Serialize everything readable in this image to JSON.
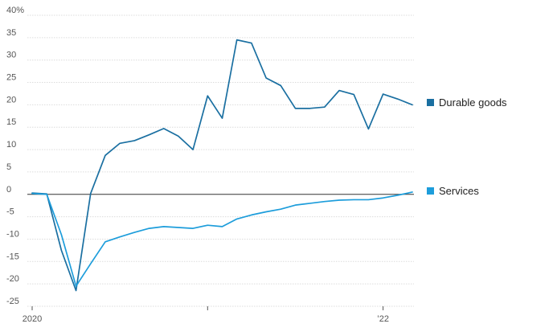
{
  "chart_data": {
    "type": "line",
    "title": "",
    "xlabel": "",
    "ylabel": "",
    "unit": "%",
    "ylim": [
      -25,
      40
    ],
    "xlim": [
      "2020-01",
      "2022-04"
    ],
    "yticks": [
      {
        "value": 40,
        "label": "40%"
      },
      {
        "value": 35,
        "label": "35"
      },
      {
        "value": 30,
        "label": "30"
      },
      {
        "value": 25,
        "label": "25"
      },
      {
        "value": 20,
        "label": "20"
      },
      {
        "value": 15,
        "label": "15"
      },
      {
        "value": 10,
        "label": "10"
      },
      {
        "value": 5,
        "label": "5"
      },
      {
        "value": 0,
        "label": "0"
      },
      {
        "value": -5,
        "label": "-5"
      },
      {
        "value": -10,
        "label": "-10"
      },
      {
        "value": -15,
        "label": "-15"
      },
      {
        "value": -20,
        "label": "-20"
      },
      {
        "value": -25,
        "label": "-25"
      }
    ],
    "xticks": [
      {
        "value": "2020-01",
        "label": "2020"
      },
      {
        "value": "2021-01",
        "label": ""
      },
      {
        "value": "2022-01",
        "label": "’22"
      }
    ],
    "grid": true,
    "legend": "right-inline",
    "x": [
      "2020-01",
      "2020-02",
      "2020-03",
      "2020-04",
      "2020-05",
      "2020-06",
      "2020-07",
      "2020-08",
      "2020-09",
      "2020-10",
      "2020-11",
      "2020-12",
      "2021-01",
      "2021-02",
      "2021-03",
      "2021-04",
      "2021-05",
      "2021-06",
      "2021-07",
      "2021-08",
      "2021-09",
      "2021-10",
      "2021-11",
      "2021-12",
      "2022-01",
      "2022-02",
      "2022-03"
    ],
    "series": [
      {
        "name": "Durable goods",
        "color": "#1a6fa1",
        "values": [
          0.3,
          0.1,
          -12.5,
          -21.5,
          0.2,
          8.7,
          11.4,
          12.0,
          13.3,
          14.7,
          13.0,
          10.0,
          22.0,
          17.0,
          34.5,
          33.8,
          26.0,
          24.3,
          19.2,
          19.2,
          19.5,
          23.2,
          22.3,
          14.6,
          22.4,
          21.3,
          20.0
        ]
      },
      {
        "name": "Services",
        "color": "#1d9ddb",
        "values": [
          0.2,
          0.0,
          -9.0,
          -20.5,
          -15.5,
          -10.6,
          -9.5,
          -8.5,
          -7.6,
          -7.2,
          -7.4,
          -7.6,
          -6.9,
          -7.2,
          -5.5,
          -4.6,
          -3.9,
          -3.3,
          -2.4,
          -2.0,
          -1.6,
          -1.3,
          -1.2,
          -1.2,
          -0.8,
          -0.2,
          0.5
        ]
      }
    ]
  }
}
